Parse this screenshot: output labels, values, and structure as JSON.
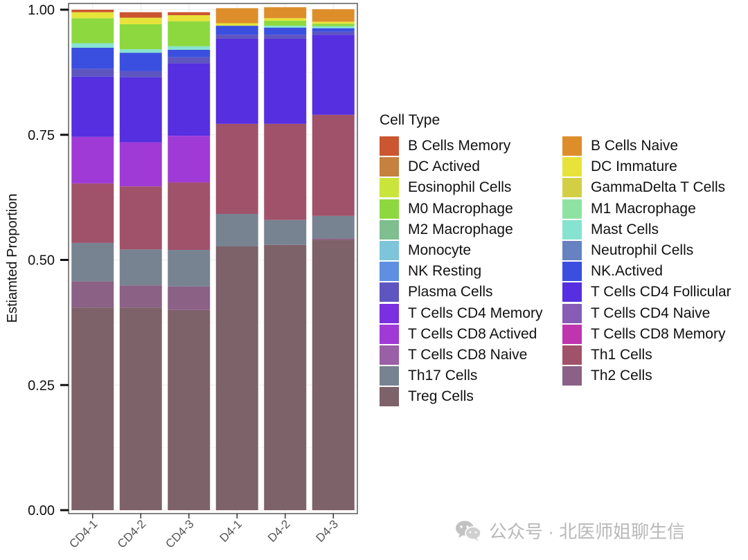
{
  "chart_data": {
    "type": "stacked-bar",
    "title": "",
    "xlabel": "",
    "ylabel": "Estiamted Proportion",
    "ylim": [
      0,
      1
    ],
    "yticks": [
      "0.00",
      "0.25",
      "0.50",
      "0.75",
      "1.00"
    ],
    "categories": [
      "CD4-1",
      "CD4-2",
      "CD4-3",
      "D4-1",
      "D4-2",
      "D4-3"
    ],
    "series": [
      {
        "name": "Treg Cells",
        "color": "#7e6269",
        "values": [
          0.405,
          0.405,
          0.4,
          0.527,
          0.53,
          0.54
        ]
      },
      {
        "name": "Th2 Cells",
        "color": "#8b6186",
        "values": [
          0.052,
          0.044,
          0.047,
          0.0,
          0.0,
          0.003
        ]
      },
      {
        "name": "Th17 Cells",
        "color": "#788391",
        "values": [
          0.077,
          0.072,
          0.073,
          0.065,
          0.05,
          0.045
        ]
      },
      {
        "name": "Th1 Cells",
        "color": "#a1526b",
        "values": [
          0.119,
          0.126,
          0.135,
          0.18,
          0.192,
          0.202
        ]
      },
      {
        "name": "T Cells CD8 Actived",
        "color": "#a03ad7",
        "values": [
          0.093,
          0.088,
          0.093,
          0.0,
          0.0,
          0.0
        ]
      },
      {
        "name": "T Cells CD4 Follicular",
        "color": "#552fe0",
        "values": [
          0.12,
          0.13,
          0.145,
          0.17,
          0.17,
          0.16
        ]
      },
      {
        "name": "Plasma Cells",
        "color": "#5e55c1",
        "values": [
          0.016,
          0.012,
          0.012,
          0.008,
          0.008,
          0.006
        ]
      },
      {
        "name": "NK.Actived",
        "color": "#3a4fdf",
        "values": [
          0.042,
          0.037,
          0.015,
          0.018,
          0.014,
          0.007
        ]
      },
      {
        "name": "Mast Cells",
        "color": "#86e3d0",
        "values": [
          0.009,
          0.007,
          0.007,
          0.0,
          0.004,
          0.004
        ]
      },
      {
        "name": "M0 Macrophage",
        "color": "#8dd83f",
        "values": [
          0.05,
          0.05,
          0.05,
          0.0,
          0.01,
          0.005
        ]
      },
      {
        "name": "DC Immature",
        "color": "#e8e33a",
        "values": [
          0.012,
          0.013,
          0.012,
          0.005,
          0.005,
          0.004
        ]
      },
      {
        "name": "B Cells Naive",
        "color": "#dd8e2b",
        "values": [
          0.0,
          0.0,
          0.0,
          0.03,
          0.022,
          0.025
        ]
      },
      {
        "name": "B Cells Memory",
        "color": "#cb5630",
        "values": [
          0.005,
          0.011,
          0.006,
          0.0,
          0.0,
          0.0
        ]
      }
    ]
  },
  "legend": {
    "title": "Cell Type",
    "col1": [
      {
        "label": "B Cells Memory",
        "color": "#cb5630"
      },
      {
        "label": "DC Actived",
        "color": "#c5813d"
      },
      {
        "label": "Eosinophil Cells",
        "color": "#c9e53a"
      },
      {
        "label": "M0 Macrophage",
        "color": "#8dd83f"
      },
      {
        "label": "M2 Macrophage",
        "color": "#7fbe8e"
      },
      {
        "label": "Monocyte",
        "color": "#7ec4da"
      },
      {
        "label": "NK Resting",
        "color": "#5e8fe0"
      },
      {
        "label": "Plasma Cells",
        "color": "#5e55c1"
      },
      {
        "label": "T Cells CD4 Memory",
        "color": "#7a2fe0"
      },
      {
        "label": "T Cells CD8 Actived",
        "color": "#a03ad7"
      },
      {
        "label": "T Cells CD8 Naive",
        "color": "#9a5fa6"
      },
      {
        "label": "Th17 Cells",
        "color": "#788391"
      },
      {
        "label": "Treg Cells",
        "color": "#7e6269"
      }
    ],
    "col2": [
      {
        "label": "B Cells Naive",
        "color": "#dd8e2b"
      },
      {
        "label": "DC Immature",
        "color": "#e8e33a"
      },
      {
        "label": "GammaDelta T Cells",
        "color": "#d3cf45"
      },
      {
        "label": "M1 Macrophage",
        "color": "#8ee3a3"
      },
      {
        "label": "Mast Cells",
        "color": "#86e3d0"
      },
      {
        "label": "Neutrophil Cells",
        "color": "#6682c1"
      },
      {
        "label": "NK.Actived",
        "color": "#3a4fdf"
      },
      {
        "label": "T Cells CD4 Follicular",
        "color": "#552fe0"
      },
      {
        "label": "T Cells CD4 Naive",
        "color": "#875cb6"
      },
      {
        "label": "T Cells CD8 Memory",
        "color": "#bf35ad"
      },
      {
        "label": "Th1 Cells",
        "color": "#a1526b"
      },
      {
        "label": "Th2 Cells",
        "color": "#8b6186"
      }
    ]
  },
  "watermark": {
    "text": "公众号 · 北医师姐聊生信",
    "icon": "wechat-icon"
  }
}
